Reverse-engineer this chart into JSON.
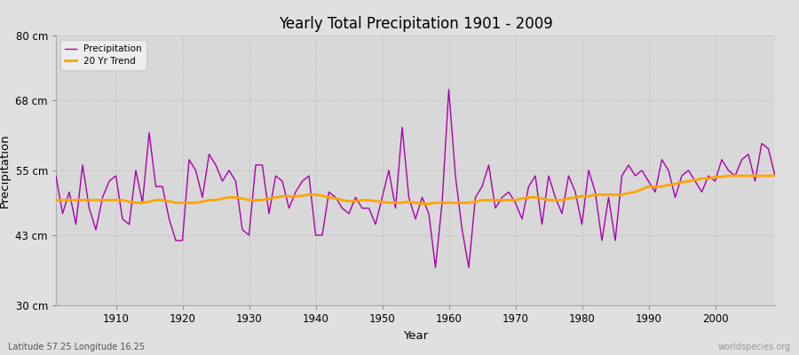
{
  "title": "Yearly Total Precipitation 1901 - 2009",
  "xlabel": "Year",
  "ylabel": "Precipitation",
  "subtitle": "Latitude 57.25 Longitude 16.25",
  "watermark": "worldspecies.org",
  "ylim": [
    30,
    80
  ],
  "yticks": [
    30,
    43,
    55,
    68,
    80
  ],
  "ytick_labels": [
    "30 cm",
    "43 cm",
    "55 cm",
    "68 cm",
    "80 cm"
  ],
  "xlim": [
    1901,
    2009
  ],
  "xticks": [
    1910,
    1920,
    1930,
    1940,
    1950,
    1960,
    1970,
    1980,
    1990,
    2000
  ],
  "precip_color": "#AA00AA",
  "trend_color": "#FFA500",
  "fig_bg_color": "#E0E0E0",
  "plot_bg_color": "#D8D8D8",
  "legend_bg": "#F0F0F0",
  "years": [
    1901,
    1902,
    1903,
    1904,
    1905,
    1906,
    1907,
    1908,
    1909,
    1910,
    1911,
    1912,
    1913,
    1914,
    1915,
    1916,
    1917,
    1918,
    1919,
    1920,
    1921,
    1922,
    1923,
    1924,
    1925,
    1926,
    1927,
    1928,
    1929,
    1930,
    1931,
    1932,
    1933,
    1934,
    1935,
    1936,
    1937,
    1938,
    1939,
    1940,
    1941,
    1942,
    1943,
    1944,
    1945,
    1946,
    1947,
    1948,
    1949,
    1950,
    1951,
    1952,
    1953,
    1954,
    1955,
    1956,
    1957,
    1958,
    1959,
    1960,
    1961,
    1962,
    1963,
    1964,
    1965,
    1966,
    1967,
    1968,
    1969,
    1970,
    1971,
    1972,
    1973,
    1974,
    1975,
    1976,
    1977,
    1978,
    1979,
    1980,
    1981,
    1982,
    1983,
    1984,
    1985,
    1986,
    1987,
    1988,
    1989,
    1990,
    1991,
    1992,
    1993,
    1994,
    1995,
    1996,
    1997,
    1998,
    1999,
    2000,
    2001,
    2002,
    2003,
    2004,
    2005,
    2006,
    2007,
    2008,
    2009
  ],
  "precip": [
    54,
    47,
    51,
    45,
    56,
    48,
    44,
    50,
    53,
    54,
    46,
    45,
    55,
    49,
    62,
    52,
    52,
    46,
    42,
    42,
    57,
    55,
    50,
    58,
    56,
    53,
    55,
    53,
    44,
    43,
    56,
    56,
    47,
    54,
    53,
    48,
    51,
    53,
    54,
    43,
    43,
    51,
    50,
    48,
    47,
    50,
    48,
    48,
    45,
    50,
    55,
    48,
    63,
    50,
    46,
    50,
    47,
    37,
    49,
    70,
    54,
    44,
    37,
    50,
    52,
    56,
    48,
    50,
    51,
    49,
    46,
    52,
    54,
    45,
    54,
    50,
    47,
    54,
    51,
    45,
    55,
    51,
    42,
    50,
    42,
    54,
    56,
    54,
    55,
    53,
    51,
    57,
    55,
    50,
    54,
    55,
    53,
    51,
    54,
    53,
    57,
    55,
    54,
    57,
    58,
    53,
    60,
    59,
    54
  ],
  "trend": [
    49.5,
    49.5,
    49.5,
    49.5,
    49.5,
    49.5,
    49.5,
    49.5,
    49.5,
    49.5,
    49.5,
    49.2,
    49.0,
    49.0,
    49.2,
    49.5,
    49.5,
    49.3,
    49.0,
    49.0,
    49.0,
    49.0,
    49.2,
    49.5,
    49.5,
    49.8,
    50.0,
    50.0,
    49.8,
    49.5,
    49.5,
    49.5,
    49.8,
    50.0,
    50.2,
    50.2,
    50.2,
    50.3,
    50.5,
    50.5,
    50.3,
    50.0,
    49.8,
    49.5,
    49.3,
    49.3,
    49.5,
    49.5,
    49.3,
    49.2,
    49.0,
    49.0,
    49.0,
    49.2,
    49.0,
    48.8,
    48.8,
    49.0,
    49.0,
    49.0,
    49.0,
    49.0,
    49.0,
    49.2,
    49.5,
    49.5,
    49.5,
    49.5,
    49.5,
    49.5,
    49.8,
    50.0,
    50.0,
    49.8,
    49.5,
    49.5,
    49.5,
    49.8,
    50.0,
    50.2,
    50.2,
    50.5,
    50.5,
    50.5,
    50.5,
    50.5,
    50.8,
    51.0,
    51.5,
    52.0,
    52.0,
    52.0,
    52.3,
    52.5,
    52.8,
    53.0,
    53.2,
    53.5,
    53.5,
    53.8,
    53.8,
    54.0,
    54.0,
    54.0,
    54.0,
    54.0,
    54.0,
    54.0,
    54.0
  ]
}
